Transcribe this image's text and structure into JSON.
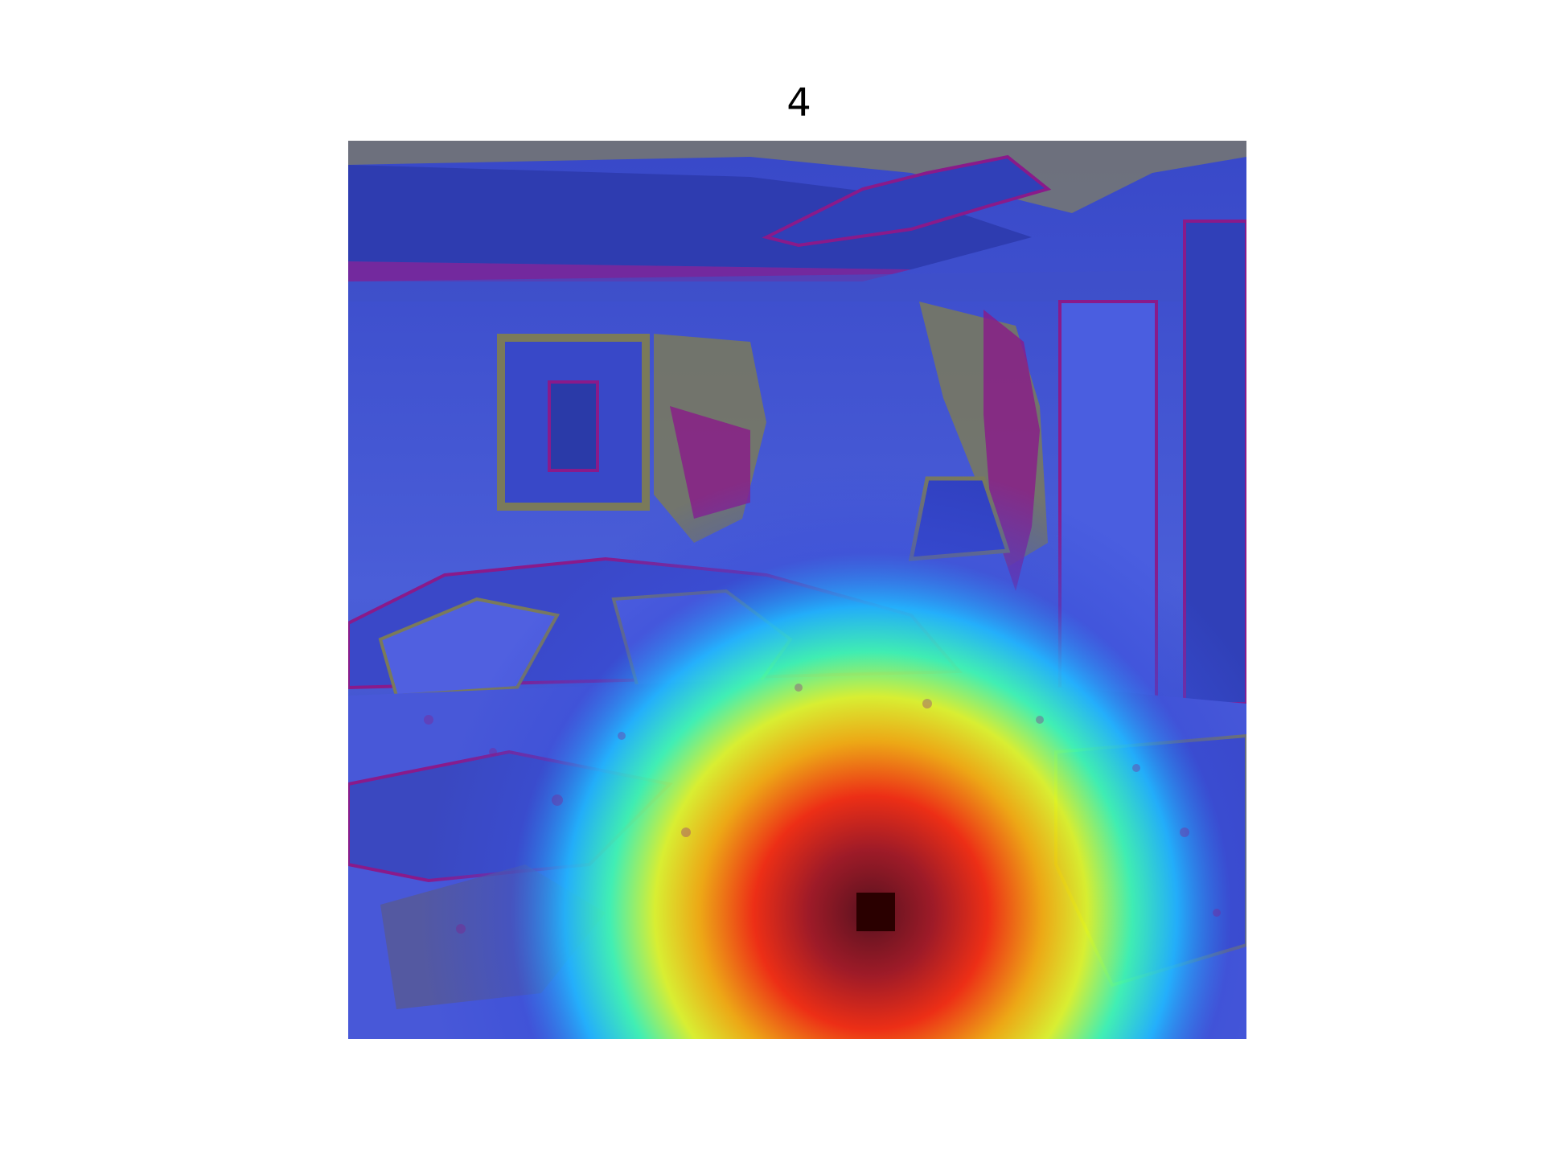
{
  "figure": {
    "title": "4"
  },
  "image": {
    "description_icon": "heatmap-overlay-image",
    "colormap": "jet",
    "base_color": "#3a4fd8",
    "hot_color": "#ff2a00",
    "marker_color": "#2a0000"
  }
}
